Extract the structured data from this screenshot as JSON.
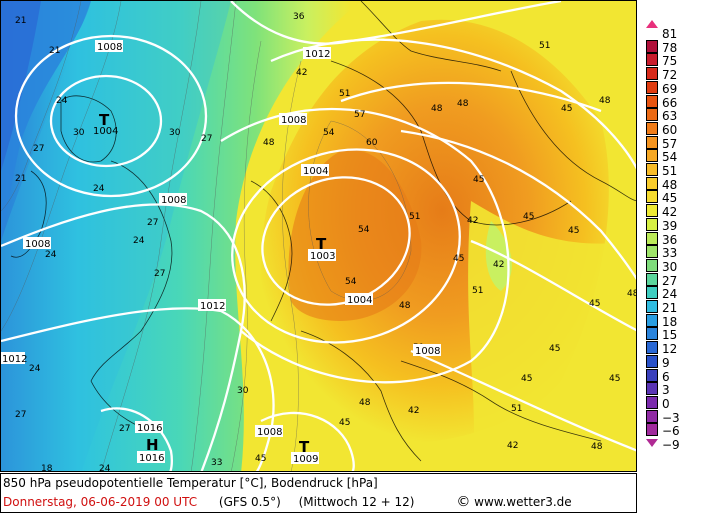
{
  "colors": {
    "ocean_deep": "#2a7fd8",
    "ocean_mid": "#2ec3e0",
    "teal": "#49d7b8",
    "green": "#7fe27a",
    "yellowgreen": "#c9f060",
    "yellow": "#f2e632",
    "gold": "#f5c020",
    "orange": "#f09c20",
    "darkorange": "#e67c18",
    "isobar": "#ffffff",
    "footer_red": "#d01010"
  },
  "legend": {
    "values": [
      "81",
      "78",
      "75",
      "72",
      "69",
      "66",
      "63",
      "60",
      "57",
      "54",
      "51",
      "48",
      "45",
      "42",
      "39",
      "36",
      "33",
      "30",
      "27",
      "24",
      "21",
      "18",
      "15",
      "12",
      "9",
      "6",
      "3",
      "0",
      "−3",
      "−6",
      "−9"
    ],
    "colors": [
      "#e8307c",
      "#b0103a",
      "#c81c2c",
      "#d82a1a",
      "#e03c10",
      "#e85410",
      "#ec6a14",
      "#f07c18",
      "#f49420",
      "#f6a824",
      "#f8bc28",
      "#f8cc2c",
      "#f6dc30",
      "#eeea34",
      "#d6f044",
      "#bceb5a",
      "#9fe46a",
      "#7fdc7c",
      "#5cd59c",
      "#3ecdc0",
      "#30bce0",
      "#2a9ee2",
      "#2a84dc",
      "#2a68d4",
      "#2a52c8",
      "#3a40bc",
      "#5a34b4",
      "#7a2aac",
      "#902aa4",
      "#a02a9c",
      "#b02a94"
    ]
  },
  "map": {
    "isobar_labels": [
      "1008",
      "1012",
      "1008",
      "1004",
      "1008",
      "1008",
      "1004",
      "1012",
      "1008",
      "1012",
      "1016",
      "1016",
      "1008",
      "1009",
      "1004"
    ],
    "temp_labels": [
      "21",
      "24",
      "30",
      "27",
      "21",
      "27",
      "24",
      "27",
      "24",
      "24",
      "27",
      "30",
      "36",
      "42",
      "48",
      "51",
      "54",
      "57",
      "60",
      "54",
      "51",
      "48",
      "45",
      "42",
      "48",
      "45",
      "51",
      "54",
      "45",
      "48",
      "51",
      "45",
      "45",
      "48",
      "51",
      "42",
      "45",
      "48",
      "45",
      "42",
      "48",
      "51",
      "42",
      "45",
      "33",
      "27",
      "24",
      "21",
      "30",
      "27",
      "24",
      "18",
      "45",
      "48",
      "45",
      "45"
    ],
    "centers": [
      {
        "type": "T",
        "pressure": "1004"
      },
      {
        "type": "T",
        "pressure": "1003"
      },
      {
        "type": "T",
        "pressure": "1009"
      },
      {
        "type": "H",
        "pressure": "1016"
      }
    ]
  },
  "footer": {
    "title": "850 hPa pseudopotentielle Temperatur [°C], Bodendruck [hPa]",
    "date": "Donnerstag, 06-06-2019  00 UTC",
    "model": "(GFS 0.5°)",
    "valid": "(Mittwoch 12 + 12)",
    "site": "www.wetter3.de",
    "copyright_symbol": "©"
  }
}
